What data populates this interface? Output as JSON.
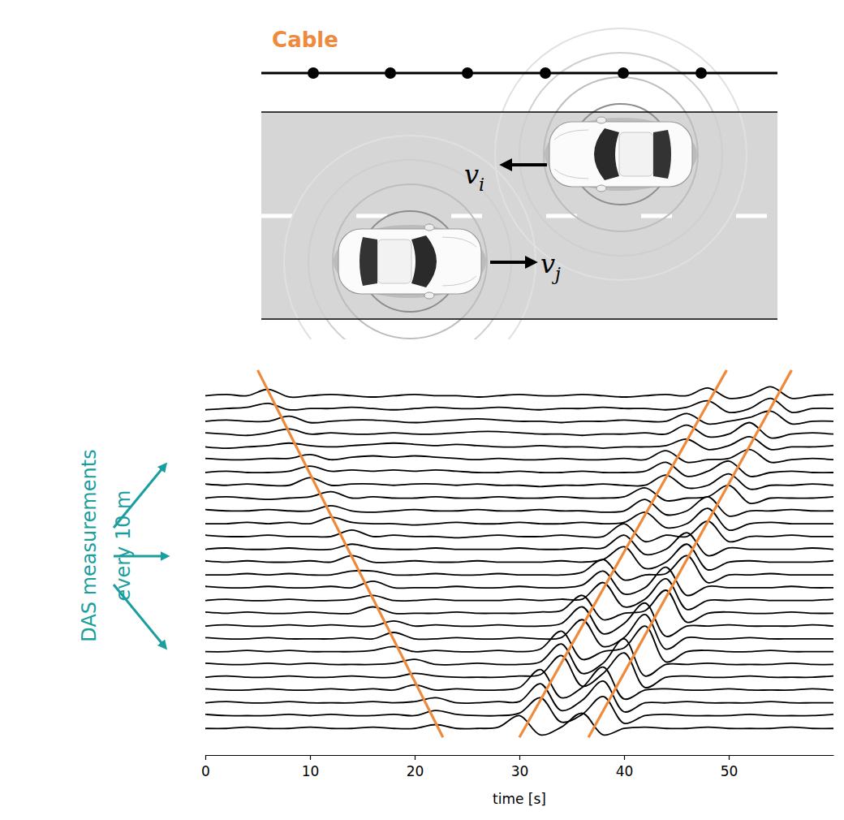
{
  "chart_data": {
    "type": "line",
    "x_label": "time [s]",
    "xlim": [
      0,
      60
    ],
    "xticks": [
      0,
      10,
      20,
      30,
      40,
      50
    ],
    "ylim": [
      27,
      -2.5
    ],
    "tick_labels": "x",
    "color": "#000000",
    "x": [
      0,
      2,
      4,
      6,
      8,
      10,
      12,
      14,
      16,
      18,
      20,
      22,
      24,
      26,
      28,
      30,
      32,
      34,
      36,
      38,
      40,
      42,
      44,
      46,
      48,
      50,
      52,
      54,
      56,
      58,
      60
    ],
    "series": [
      {
        "values": [
          0,
          0.1,
          0,
          0.5,
          -0.1,
          0,
          0.1,
          0,
          -0.1,
          0,
          0.1,
          0,
          0,
          -0.1,
          0,
          0.1,
          0,
          0,
          0.1,
          0,
          -0.1,
          0,
          0.1,
          0,
          0.6,
          -0.2,
          0,
          0.7,
          -0.2,
          0,
          0.1
        ]
      },
      {
        "values": [
          -0.1,
          0,
          0.1,
          0.4,
          -0.1,
          0,
          0,
          0.1,
          0,
          -0.1,
          0,
          0.1,
          0,
          0,
          0.1,
          0,
          -0.1,
          0,
          0,
          0.1,
          0,
          0,
          -0.1,
          0.1,
          0.6,
          -0.3,
          0,
          0.8,
          -0.3,
          0,
          0
        ]
      },
      {
        "values": [
          0,
          0.1,
          0,
          0,
          0.4,
          -0.1,
          0,
          0.1,
          0.1,
          0,
          -0.1,
          0,
          0.1,
          0.2,
          0.1,
          0,
          0,
          -0.1,
          0,
          0,
          0.1,
          0,
          0,
          0.6,
          -0.2,
          0,
          0.3,
          0.8,
          -0.2,
          0,
          0
        ]
      },
      {
        "values": [
          0.1,
          0,
          -0.1,
          0.1,
          0.4,
          0,
          0.1,
          0,
          0,
          0.1,
          0,
          0,
          0.1,
          0.2,
          0.2,
          0.1,
          0,
          0,
          -0.1,
          0,
          0,
          0.1,
          0,
          0.7,
          -0.2,
          0,
          0.9,
          -0.3,
          0,
          0.1,
          0
        ]
      },
      {
        "values": [
          0,
          -0.1,
          0,
          0.1,
          0.3,
          0.1,
          0,
          0.1,
          0.2,
          0.3,
          0.2,
          0.1,
          0.2,
          0.1,
          0,
          0,
          0.1,
          0,
          0,
          -0.1,
          0,
          0,
          0.1,
          0.6,
          -0.2,
          0.1,
          0.8,
          -0.2,
          0,
          0,
          0.1
        ]
      },
      {
        "values": [
          0.1,
          0,
          0,
          0.1,
          0.1,
          0.4,
          0,
          0.2,
          0.3,
          0.2,
          0.3,
          0.2,
          0.1,
          0,
          0.1,
          0,
          0,
          0.1,
          0,
          0,
          0.1,
          0,
          0.7,
          -0.2,
          0,
          0.1,
          0.8,
          -0.2,
          0,
          0.1,
          0
        ]
      },
      {
        "values": [
          0,
          0.1,
          0,
          0,
          0.1,
          0.5,
          0.1,
          0.2,
          0.1,
          0.2,
          0.1,
          0.2,
          0.1,
          0,
          0,
          0.1,
          0,
          0,
          0.1,
          0,
          0,
          0.1,
          0.8,
          -0.3,
          0.1,
          0.9,
          -0.3,
          0,
          0.1,
          0,
          0
        ]
      },
      {
        "values": [
          0.1,
          0,
          0.1,
          0,
          0,
          0.6,
          0,
          0.1,
          0.1,
          0,
          0.1,
          0.1,
          0,
          0.1,
          0,
          0,
          -0.1,
          0,
          0,
          0.1,
          0,
          0,
          0.8,
          -0.2,
          0,
          0.9,
          -0.3,
          0,
          0,
          0.1,
          0
        ]
      },
      {
        "values": [
          0,
          0.1,
          0,
          -0.1,
          0,
          0.1,
          0.5,
          0,
          0.1,
          0,
          0,
          0.1,
          0,
          0,
          0.1,
          0,
          0,
          0.1,
          0,
          0,
          0.1,
          0.8,
          -0.2,
          0,
          0.1,
          1.0,
          -0.4,
          0,
          0,
          0,
          0.1
        ]
      },
      {
        "values": [
          0.1,
          0,
          0,
          0.1,
          0,
          0,
          0.4,
          0,
          -0.1,
          0,
          0.1,
          0,
          0,
          0.1,
          0,
          0,
          0.1,
          0,
          0,
          -0.1,
          0,
          0.9,
          -0.3,
          0,
          1.1,
          -0.4,
          0,
          0,
          0.1,
          0,
          0
        ]
      },
      {
        "values": [
          0,
          0,
          0.1,
          0,
          0.1,
          0,
          0.5,
          0.1,
          0,
          0,
          -0.1,
          0,
          0.1,
          0,
          0,
          0.1,
          0,
          0,
          0.1,
          0,
          0.1,
          0.9,
          -0.3,
          0,
          1.2,
          -0.5,
          0,
          0.1,
          0,
          0,
          0
        ]
      },
      {
        "values": [
          0.1,
          0,
          0,
          0.1,
          0,
          0,
          0,
          0.5,
          0,
          0.1,
          0,
          0,
          -0.1,
          0,
          0.1,
          0,
          0,
          0.1,
          0,
          0,
          1.0,
          -0.4,
          0.1,
          0,
          1.2,
          -0.4,
          0,
          0,
          0.1,
          0,
          0
        ]
      },
      {
        "values": [
          0,
          0.1,
          0,
          0,
          0.1,
          0,
          0,
          0.4,
          0.1,
          0,
          0,
          0.1,
          0,
          0,
          0,
          0.1,
          0,
          0,
          0.1,
          0.1,
          1.1,
          -0.4,
          0,
          1.3,
          -0.5,
          0.1,
          0,
          0,
          0,
          0.1,
          0
        ]
      },
      {
        "values": [
          0.1,
          0,
          0.1,
          0,
          0,
          0.1,
          0,
          0.5,
          0,
          0,
          0.1,
          0,
          0,
          0.1,
          0,
          0,
          0,
          0.1,
          0,
          0.2,
          1.2,
          -0.5,
          0,
          1.4,
          -0.6,
          0,
          0.1,
          0,
          0,
          0,
          0.1
        ]
      },
      {
        "values": [
          0,
          0,
          0.1,
          0,
          0.1,
          0,
          0,
          0.3,
          0.3,
          0,
          0,
          0.1,
          0,
          0,
          0.1,
          0,
          0,
          0,
          0.2,
          1.2,
          -0.4,
          0,
          0.1,
          1.5,
          -0.6,
          0,
          0,
          0.1,
          0,
          0,
          0
        ]
      },
      {
        "values": [
          0.1,
          0,
          0,
          0.1,
          0,
          0,
          0.1,
          0,
          0.5,
          0,
          0,
          0,
          0.1,
          0,
          0,
          0.1,
          0,
          0,
          0.2,
          1.3,
          -0.5,
          0,
          1.6,
          -0.6,
          0.1,
          0,
          0,
          0,
          0.1,
          0,
          0
        ]
      },
      {
        "values": [
          0,
          0.1,
          0,
          0,
          0.1,
          0,
          0,
          0.1,
          0.4,
          0,
          0,
          0.1,
          0,
          0,
          0,
          0.1,
          0,
          0.1,
          0.1,
          1.4,
          -0.5,
          0.1,
          1.7,
          -0.7,
          0,
          0,
          0.1,
          0,
          0,
          0,
          0.1
        ]
      },
      {
        "values": [
          0.1,
          0,
          0.1,
          0,
          0,
          0.1,
          0,
          0,
          0.5,
          0,
          0,
          0,
          0.1,
          0,
          0,
          0,
          0.1,
          0.2,
          1.4,
          -0.5,
          0,
          0.2,
          1.8,
          -0.7,
          0,
          0.1,
          0,
          0,
          0.1,
          0,
          0
        ]
      },
      {
        "values": [
          0,
          0.1,
          0,
          0,
          0.1,
          0,
          0.1,
          0,
          0,
          0.4,
          0,
          0.1,
          0,
          0,
          0.1,
          0,
          0,
          0.2,
          1.5,
          -0.6,
          0.2,
          1.8,
          -0.8,
          0,
          0,
          0.1,
          0,
          0,
          0,
          0.1,
          0
        ]
      },
      {
        "values": [
          0.1,
          0,
          0,
          0.1,
          0,
          0,
          0,
          0.1,
          0,
          0.5,
          0,
          0,
          0.1,
          0,
          0,
          0.1,
          0,
          0.1,
          1.5,
          -0.6,
          0.1,
          1.9,
          -0.8,
          0.1,
          0,
          0,
          0.1,
          0,
          0,
          0,
          0
        ]
      },
      {
        "values": [
          0,
          0,
          0.1,
          0,
          0.1,
          0,
          0,
          0,
          0.1,
          0.4,
          0,
          0.1,
          0,
          0,
          0.1,
          0,
          0.2,
          1.6,
          -0.6,
          0,
          0.3,
          2.0,
          -0.8,
          0,
          0.1,
          0,
          0,
          0.1,
          0,
          0,
          0
        ]
      },
      {
        "values": [
          0.1,
          0,
          0,
          0.1,
          0,
          0.1,
          0,
          0,
          0,
          0.1,
          0.4,
          0,
          0,
          0.1,
          0,
          0,
          0.2,
          1.6,
          -0.7,
          0.1,
          2.0,
          -0.9,
          0,
          0,
          0.1,
          0,
          0,
          0,
          0.1,
          0,
          0
        ]
      },
      {
        "values": [
          0,
          0.1,
          0,
          0,
          0.1,
          0,
          0,
          0.1,
          0,
          0,
          0.3,
          0.1,
          0,
          0,
          0,
          0.1,
          0.2,
          1.7,
          -0.7,
          0.3,
          1.9,
          -0.8,
          0,
          0.1,
          0,
          0,
          0.1,
          0,
          0,
          0,
          0.1
        ]
      },
      {
        "values": [
          0.1,
          0,
          0,
          0.1,
          0,
          0,
          0.1,
          0,
          0.1,
          0,
          0.4,
          0,
          0.1,
          0,
          0,
          0.2,
          1.6,
          -0.6,
          0.2,
          1.8,
          -0.7,
          0,
          0.1,
          0,
          0,
          0.1,
          0,
          0,
          0,
          0.1,
          0
        ]
      },
      {
        "values": [
          0,
          0.1,
          0,
          0,
          0.1,
          0,
          0,
          0,
          0.1,
          0,
          0.1,
          0.4,
          0,
          0,
          0.1,
          0.1,
          1.5,
          -0.6,
          0.2,
          1.7,
          -0.7,
          0,
          0,
          0.1,
          0,
          0,
          0,
          0.1,
          0,
          0,
          0
        ]
      },
      {
        "values": [
          0.1,
          0,
          0,
          0,
          0.1,
          0,
          0.1,
          0,
          0,
          0.1,
          0,
          0.4,
          0.1,
          0,
          0,
          0.2,
          1.4,
          -0.5,
          0.1,
          1.5,
          -0.6,
          0,
          0.1,
          0,
          0,
          0,
          0.1,
          0,
          0,
          0,
          0.1
        ]
      },
      {
        "values": [
          0,
          0,
          0.1,
          0,
          0,
          0.1,
          0,
          0,
          0.1,
          0,
          0,
          0.3,
          0,
          0,
          0.1,
          1.0,
          -0.5,
          0.1,
          1.2,
          -0.5,
          0,
          0.1,
          0,
          0,
          0.1,
          0,
          0,
          0,
          0.1,
          0,
          0
        ]
      }
    ],
    "tracks": [
      {
        "x": [
          5.0,
          22.7
        ],
        "y": [
          -2.0,
          26.7
        ],
        "color": "#ee8a3c"
      },
      {
        "x": [
          49.8,
          30.0
        ],
        "y": [
          -2.0,
          26.7
        ],
        "color": "#ee8a3c"
      },
      {
        "x": [
          56.0,
          36.6
        ],
        "y": [
          -2.0,
          26.7
        ],
        "color": "#ee8a3c"
      }
    ],
    "annotations": [
      {
        "text": "DAS measurements",
        "color": "#1a9e9e"
      },
      {
        "text": "every 10 m",
        "color": "#1a9e9e"
      }
    ]
  },
  "diagram": {
    "cable": {
      "label": "Cable",
      "color": "#ee8a3c"
    },
    "cars": [
      {
        "label": {
          "symbol": "v",
          "subscript": "i"
        },
        "direction": "left"
      },
      {
        "label": {
          "symbol": "v",
          "subscript": "j"
        },
        "direction": "right"
      }
    ]
  }
}
